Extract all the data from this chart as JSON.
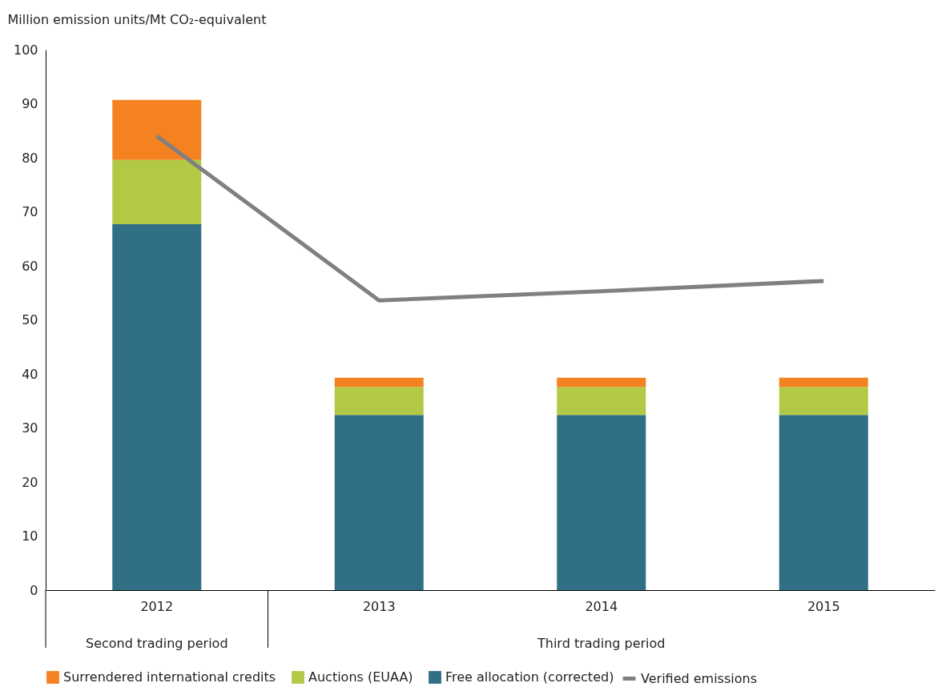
{
  "chart_data": {
    "type": "bar",
    "stacked": true,
    "ylabel": "Million emission units/Mt CO₂-equivalent",
    "categories": [
      "2012",
      "2013",
      "2014",
      "2015"
    ],
    "series": [
      {
        "name": "Free allocation (corrected)",
        "color": "#306f84",
        "values": [
          67.7,
          32.4,
          32.4,
          32.4
        ]
      },
      {
        "name": "Auctions (EUAA)",
        "color": "#b2c946",
        "values": [
          11.9,
          5.2,
          5.2,
          5.2
        ]
      },
      {
        "name": "Surrendered international credits",
        "color": "#f58220",
        "values": [
          11.1,
          1.7,
          1.7,
          1.7
        ]
      },
      {
        "name": "Verified emissions",
        "type": "line",
        "color": "#808080",
        "values": [
          84.0,
          53.6,
          55.3,
          57.2
        ]
      }
    ],
    "ylim": [
      0,
      100
    ],
    "yticks": [
      0,
      10,
      20,
      30,
      40,
      50,
      60,
      70,
      80,
      90,
      100
    ],
    "grid": false,
    "legend": "bottom",
    "marker": "none",
    "annotations": [
      "Second trading period",
      "Third trading period"
    ]
  }
}
